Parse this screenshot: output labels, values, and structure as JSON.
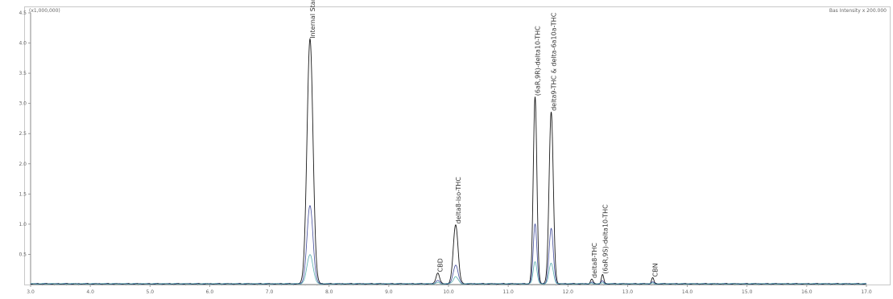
{
  "header": {
    "left_label": "(x1,000,000)",
    "right_label": "Bas Intensity  x 200.000"
  },
  "chart_data": {
    "type": "line",
    "title": "",
    "xlabel": "",
    "ylabel": "",
    "xlim": [
      3.0,
      17.0
    ],
    "ylim": [
      0,
      4.5
    ],
    "x_ticks": [
      "3.0",
      "4.0",
      "5.0",
      "6.0",
      "7.0",
      "8.0",
      "9.0",
      "10.0",
      "11.0",
      "12.0",
      "13.0",
      "14.0",
      "15.0",
      "16.0",
      "17.0"
    ],
    "y_ticks": [
      "0.5",
      "1.0",
      "1.5",
      "2.0",
      "2.5",
      "3.0",
      "3.5",
      "4.0",
      "4.5"
    ],
    "grid": false,
    "peaks": [
      {
        "label": "Internal Standard",
        "rt": 7.68,
        "height": 4.05,
        "width": 0.05
      },
      {
        "label": "CBD",
        "rt": 9.82,
        "height": 0.18,
        "width": 0.03
      },
      {
        "label": "delta8-iso-THC",
        "rt": 10.12,
        "height": 0.98,
        "width": 0.04
      },
      {
        "label": "(6aR,9R)-delta10-THC",
        "rt": 11.45,
        "height": 3.1,
        "width": 0.03
      },
      {
        "label": "delta9-THC & delta-6a10a-THC",
        "rt": 11.72,
        "height": 2.85,
        "width": 0.035
      },
      {
        "label": "delta8-THC",
        "rt": 12.4,
        "height": 0.08,
        "width": 0.02
      },
      {
        "label": "(6aR,9S)-delta10-THC",
        "rt": 12.58,
        "height": 0.15,
        "width": 0.02
      },
      {
        "label": "CBN",
        "rt": 13.42,
        "height": 0.1,
        "width": 0.02
      }
    ],
    "series": [
      {
        "color": "#000000"
      },
      {
        "color": "#1f2a8a"
      },
      {
        "color": "#3aa0a0"
      }
    ]
  }
}
